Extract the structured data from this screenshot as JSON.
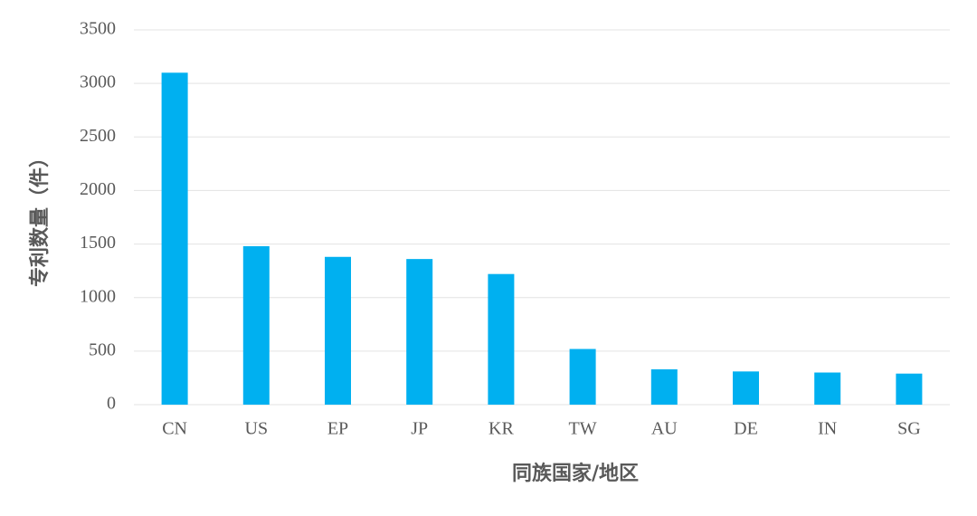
{
  "chart_data": {
    "type": "bar",
    "x_label": "同族国家/地区",
    "y_label": "专利数量（件）",
    "categories": [
      "CN",
      "US",
      "EP",
      "JP",
      "KR",
      "TW",
      "AU",
      "DE",
      "IN",
      "SG"
    ],
    "values": [
      3100,
      1480,
      1380,
      1360,
      1220,
      520,
      330,
      310,
      300,
      290
    ],
    "color": "#00b0f0",
    "ylim": [
      0,
      3500
    ],
    "yticks": [
      0,
      500,
      1000,
      1500,
      2000,
      2500,
      3000,
      3500
    ],
    "grid": true
  }
}
